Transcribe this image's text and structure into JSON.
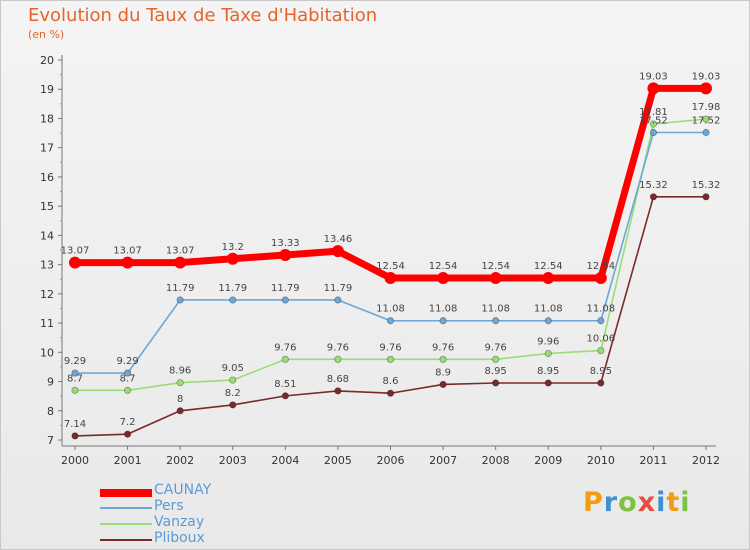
{
  "title": "Evolution du Taux de Taxe d'Habitation",
  "unit_label": "(en %)",
  "chart_data": {
    "type": "line",
    "title": "Evolution du Taux de Taxe d'Habitation",
    "ylabel": "(en %)",
    "x": [
      "2000",
      "2001",
      "2002",
      "2003",
      "2004",
      "2005",
      "2006",
      "2007",
      "2008",
      "2009",
      "2010",
      "2011",
      "2012"
    ],
    "ylim": [
      7,
      20
    ],
    "yticks": [
      7,
      8,
      9,
      10,
      11,
      12,
      13,
      14,
      15,
      16,
      17,
      18,
      19,
      20
    ],
    "grid": false,
    "legend_position": "bottom-left",
    "series": [
      {
        "name": "CAUNAY",
        "color": "#ff0000",
        "values": [
          13.07,
          13.07,
          13.07,
          13.2,
          13.33,
          13.46,
          12.54,
          12.54,
          12.54,
          12.54,
          12.54,
          19.03,
          19.03
        ],
        "labels": [
          "13.07",
          "13.07",
          "13.07",
          "13.2",
          "13.33",
          "13.46",
          "12.54",
          "12.54",
          "12.54",
          "12.54",
          "12.54",
          "19.03",
          "19.03"
        ]
      },
      {
        "name": "Pers",
        "color": "#6fa6d6",
        "values": [
          9.29,
          9.29,
          11.79,
          11.79,
          11.79,
          11.79,
          11.08,
          11.08,
          11.08,
          11.08,
          11.08,
          17.52,
          17.52
        ],
        "labels": [
          "9.29",
          "9.29",
          "11.79",
          "11.79",
          "11.79",
          "11.79",
          "11.08",
          "11.08",
          "11.08",
          "11.08",
          "11.08",
          "17.52",
          "17.52"
        ]
      },
      {
        "name": "Vanzay",
        "color": "#99dd77",
        "values": [
          8.7,
          8.7,
          8.96,
          9.05,
          9.76,
          9.76,
          9.76,
          9.76,
          9.76,
          9.96,
          10.06,
          17.81,
          17.98
        ],
        "labels": [
          "8.7",
          "8.7",
          "8.96",
          "9.05",
          "9.76",
          "9.76",
          "9.76",
          "9.76",
          "9.76",
          "9.96",
          "10.06",
          "17.81",
          "17.98"
        ]
      },
      {
        "name": "Pliboux",
        "color": "#7a2a2a",
        "values": [
          7.14,
          7.2,
          8,
          8.2,
          8.51,
          8.68,
          8.6,
          8.9,
          8.95,
          8.95,
          8.95,
          15.32,
          15.32
        ],
        "labels": [
          "7.14",
          "7.2",
          "8",
          "8.2",
          "8.51",
          "8.68",
          "8.6",
          "8.9",
          "8.95",
          "8.95",
          "8.95",
          "15.32",
          "15.32"
        ]
      }
    ]
  },
  "legend": [
    {
      "label": "CAUNAY",
      "color": "#ff0000"
    },
    {
      "label": "Pers",
      "color": "#6fa6d6"
    },
    {
      "label": "Vanzay",
      "color": "#99dd77"
    },
    {
      "label": "Pliboux",
      "color": "#7a2a2a"
    }
  ],
  "logo": {
    "text": "Proxiti",
    "letters": [
      {
        "char": "P",
        "color": "#f39c12"
      },
      {
        "char": "r",
        "color": "#3f8fd2"
      },
      {
        "char": "o",
        "color": "#7dc242"
      },
      {
        "char": "x",
        "color": "#e74c3c"
      },
      {
        "char": "i",
        "color": "#3f8fd2"
      },
      {
        "char": "t",
        "color": "#f39c12"
      },
      {
        "char": "i",
        "color": "#7dc242"
      }
    ]
  }
}
